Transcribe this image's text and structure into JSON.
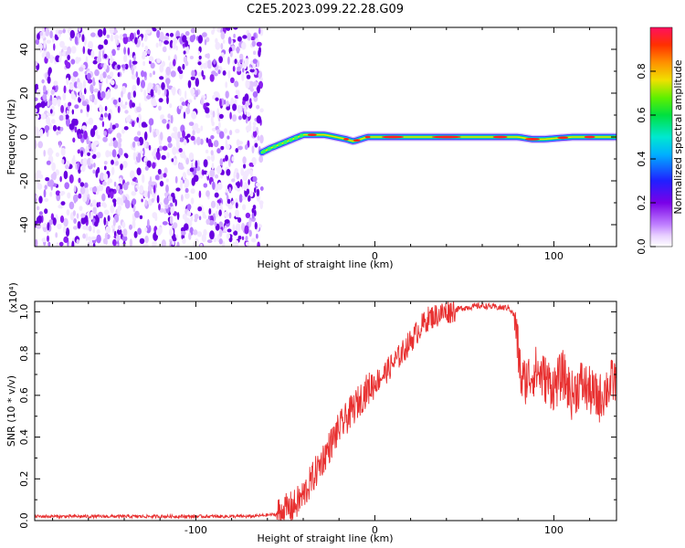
{
  "title": "C2E5.2023.099.22.28.G09",
  "chart_data": [
    {
      "type": "heatmap",
      "title": "C2E5.2023.099.22.28.G09",
      "xlabel": "Height of straight line (km)",
      "ylabel": "Frequency (Hz)",
      "xlim": [
        -190,
        135
      ],
      "ylim": [
        -50,
        50
      ],
      "x_ticks": [
        -100,
        0,
        100
      ],
      "y_ticks": [
        -40,
        -20,
        0,
        20,
        40
      ],
      "noise_region": {
        "x": [
          -190,
          -63
        ],
        "y": [
          -50,
          50
        ],
        "amplitude": 0.1
      },
      "ridge": {
        "x": [
          -63,
          -58,
          -52,
          -46,
          -40,
          -34,
          -28,
          -22,
          -16,
          -12,
          -8,
          -4,
          0,
          10,
          30,
          60,
          80,
          88,
          95,
          110,
          135
        ],
        "frequency": [
          -7,
          -5,
          -3,
          -1,
          1,
          1,
          1,
          0,
          -1,
          -2,
          -1,
          0,
          0,
          0,
          0,
          0,
          0,
          -1,
          -1,
          0,
          0
        ]
      },
      "colorbar": {
        "label": "Normalized spectral amplitude",
        "range": [
          0,
          1
        ],
        "ticks": [
          0.0,
          0.2,
          0.4,
          0.6,
          0.8
        ],
        "colors": [
          "#ffffff",
          "#e8d0ff",
          "#c080ff",
          "#7a00e8",
          "#2020ff",
          "#00b0ff",
          "#00e8d0",
          "#00e040",
          "#60f000",
          "#f0e000",
          "#ff9000",
          "#ff3000",
          "#ff1060"
        ]
      }
    },
    {
      "type": "line",
      "xlabel": "Height of straight line (km)",
      "ylabel": "SNR (10 * v/v)",
      "y_multiplier": "(x10⁴)",
      "xlim": [
        -190,
        135
      ],
      "ylim": [
        0,
        1.05
      ],
      "x_ticks": [
        -100,
        0,
        100
      ],
      "y_ticks": [
        0.0,
        0.2,
        0.4,
        0.6,
        0.8,
        1.0
      ],
      "series": [
        {
          "color": "#e83030",
          "x": [
            -190,
            -150,
            -100,
            -70,
            -55,
            -45,
            -40,
            -35,
            -30,
            -25,
            -20,
            -15,
            -10,
            -5,
            0,
            5,
            10,
            15,
            20,
            25,
            30,
            40,
            50,
            60,
            70,
            75,
            78,
            80,
            82,
            85,
            90,
            95,
            100,
            105,
            110,
            115,
            120,
            125,
            130,
            135
          ],
          "y": [
            0.02,
            0.02,
            0.02,
            0.02,
            0.03,
            0.07,
            0.12,
            0.2,
            0.28,
            0.36,
            0.44,
            0.5,
            0.56,
            0.62,
            0.66,
            0.7,
            0.75,
            0.8,
            0.86,
            0.92,
            0.97,
            1.0,
            1.02,
            1.03,
            1.02,
            1.02,
            0.98,
            0.82,
            0.66,
            0.68,
            0.72,
            0.68,
            0.64,
            0.7,
            0.6,
            0.66,
            0.62,
            0.58,
            0.64,
            0.68
          ]
        }
      ]
    }
  ]
}
